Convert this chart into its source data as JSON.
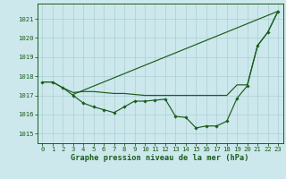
{
  "background_color": "#cce8ec",
  "grid_color": "#aacfd4",
  "line_color": "#1a5c1a",
  "ylim": [
    1014.5,
    1021.8
  ],
  "yticks": [
    1015,
    1016,
    1017,
    1018,
    1019,
    1020,
    1021
  ],
  "xlim": [
    -0.5,
    23.5
  ],
  "xticks": [
    0,
    1,
    2,
    3,
    4,
    5,
    6,
    7,
    8,
    9,
    10,
    11,
    12,
    13,
    14,
    15,
    16,
    17,
    18,
    19,
    20,
    21,
    22,
    23
  ],
  "xlabel": "Graphe pression niveau de la mer (hPa)",
  "tick_fontsize": 5.2,
  "label_fontsize": 6.2,
  "line1": [
    1017.7,
    1017.7,
    1017.4,
    1017.15,
    1017.2,
    1017.2,
    1017.15,
    1017.1,
    1017.1,
    1017.05,
    1017.0,
    1017.0,
    1017.0,
    1017.0,
    1017.0,
    1017.0,
    1017.0,
    1017.0,
    1017.0,
    1017.55,
    1017.55,
    1019.6,
    1020.3,
    1021.4
  ],
  "line2_x": [
    3,
    23
  ],
  "line2_y": [
    1017.05,
    1021.4
  ],
  "line3": [
    1017.7,
    1017.7,
    1017.4,
    1017.0,
    1016.6,
    1016.4,
    1016.25,
    1016.1,
    1016.4,
    1016.7,
    1016.7,
    1016.75,
    1016.8,
    1015.9,
    1015.85,
    1015.3,
    1015.4,
    1015.4,
    1015.65,
    1016.85,
    1017.5,
    1019.6,
    1020.3,
    1021.4
  ]
}
